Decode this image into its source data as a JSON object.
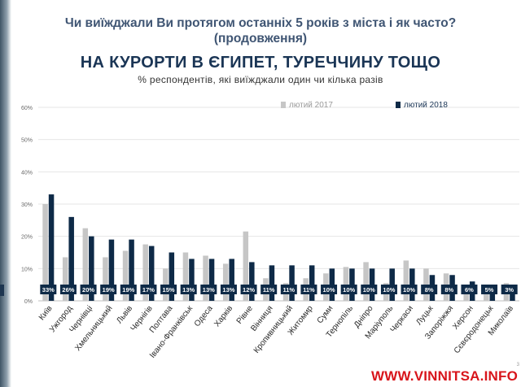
{
  "header": {
    "question": "Чи виїжджали Ви протягом останніх 5 років з міста і як часто?",
    "continuation": "(продовження)",
    "topic": "НА КУРОРТИ В ЄГИПЕТ, ТУРЕЧЧИНУ ТОЩО",
    "subtitle": "% респондентів, які виїжджали один чи кілька разів"
  },
  "watermark": "WWW.VINNITSA.INFO",
  "colors": {
    "series2017": "#c6c6c6",
    "series2018": "#0e2a47",
    "label_bg": "#0e2a47",
    "grid": "#e6e6e6",
    "axis_text": "#6b6b6b"
  },
  "chart_data": {
    "type": "bar",
    "categories": [
      "Київ",
      "Ужгород",
      "Чернівці",
      "Хмельницький",
      "Львів",
      "Чернігів",
      "Полтава",
      "Івано-Франківськ",
      "Одеса",
      "Харків",
      "Рівне",
      "Вінниця",
      "Кропивницький",
      "Житомир",
      "Суми",
      "Тернопіль",
      "Дніпро",
      "Маріуполь",
      "Черкаси",
      "Луцьк",
      "Запоріжжя",
      "Херсон",
      "Сєвєродонецьк",
      "Миколаїв"
    ],
    "series": [
      {
        "name": "лютий 2017",
        "values": [
          30,
          13.5,
          22.5,
          13.5,
          15.5,
          17.5,
          10,
          15,
          14,
          11.5,
          21.5,
          7,
          5.5,
          7,
          8.5,
          10.5,
          12,
          5.5,
          12.5,
          10,
          8.5,
          3,
          2,
          5.5
        ]
      },
      {
        "name": "лютий 2018",
        "values": [
          33,
          26,
          20,
          19,
          19,
          17,
          15,
          13,
          13,
          13,
          12,
          11,
          11,
          11,
          10,
          10,
          10,
          10,
          10,
          8,
          8,
          6,
          5,
          3
        ]
      }
    ],
    "data_labels": [
      "33%",
      "26%",
      "20%",
      "19%",
      "19%",
      "17%",
      "15%",
      "13%",
      "13%",
      "13%",
      "12%",
      "11%",
      "11%",
      "11%",
      "10%",
      "10%",
      "10%",
      "10%",
      "10%",
      "8%",
      "8%",
      "6%",
      "5%",
      "3%"
    ],
    "y_ticks": [
      "0%",
      "10%",
      "20%",
      "30%",
      "40%",
      "50%",
      "60%"
    ],
    "ylim": [
      0,
      60
    ],
    "grid": true,
    "legend_position": "top-right"
  }
}
